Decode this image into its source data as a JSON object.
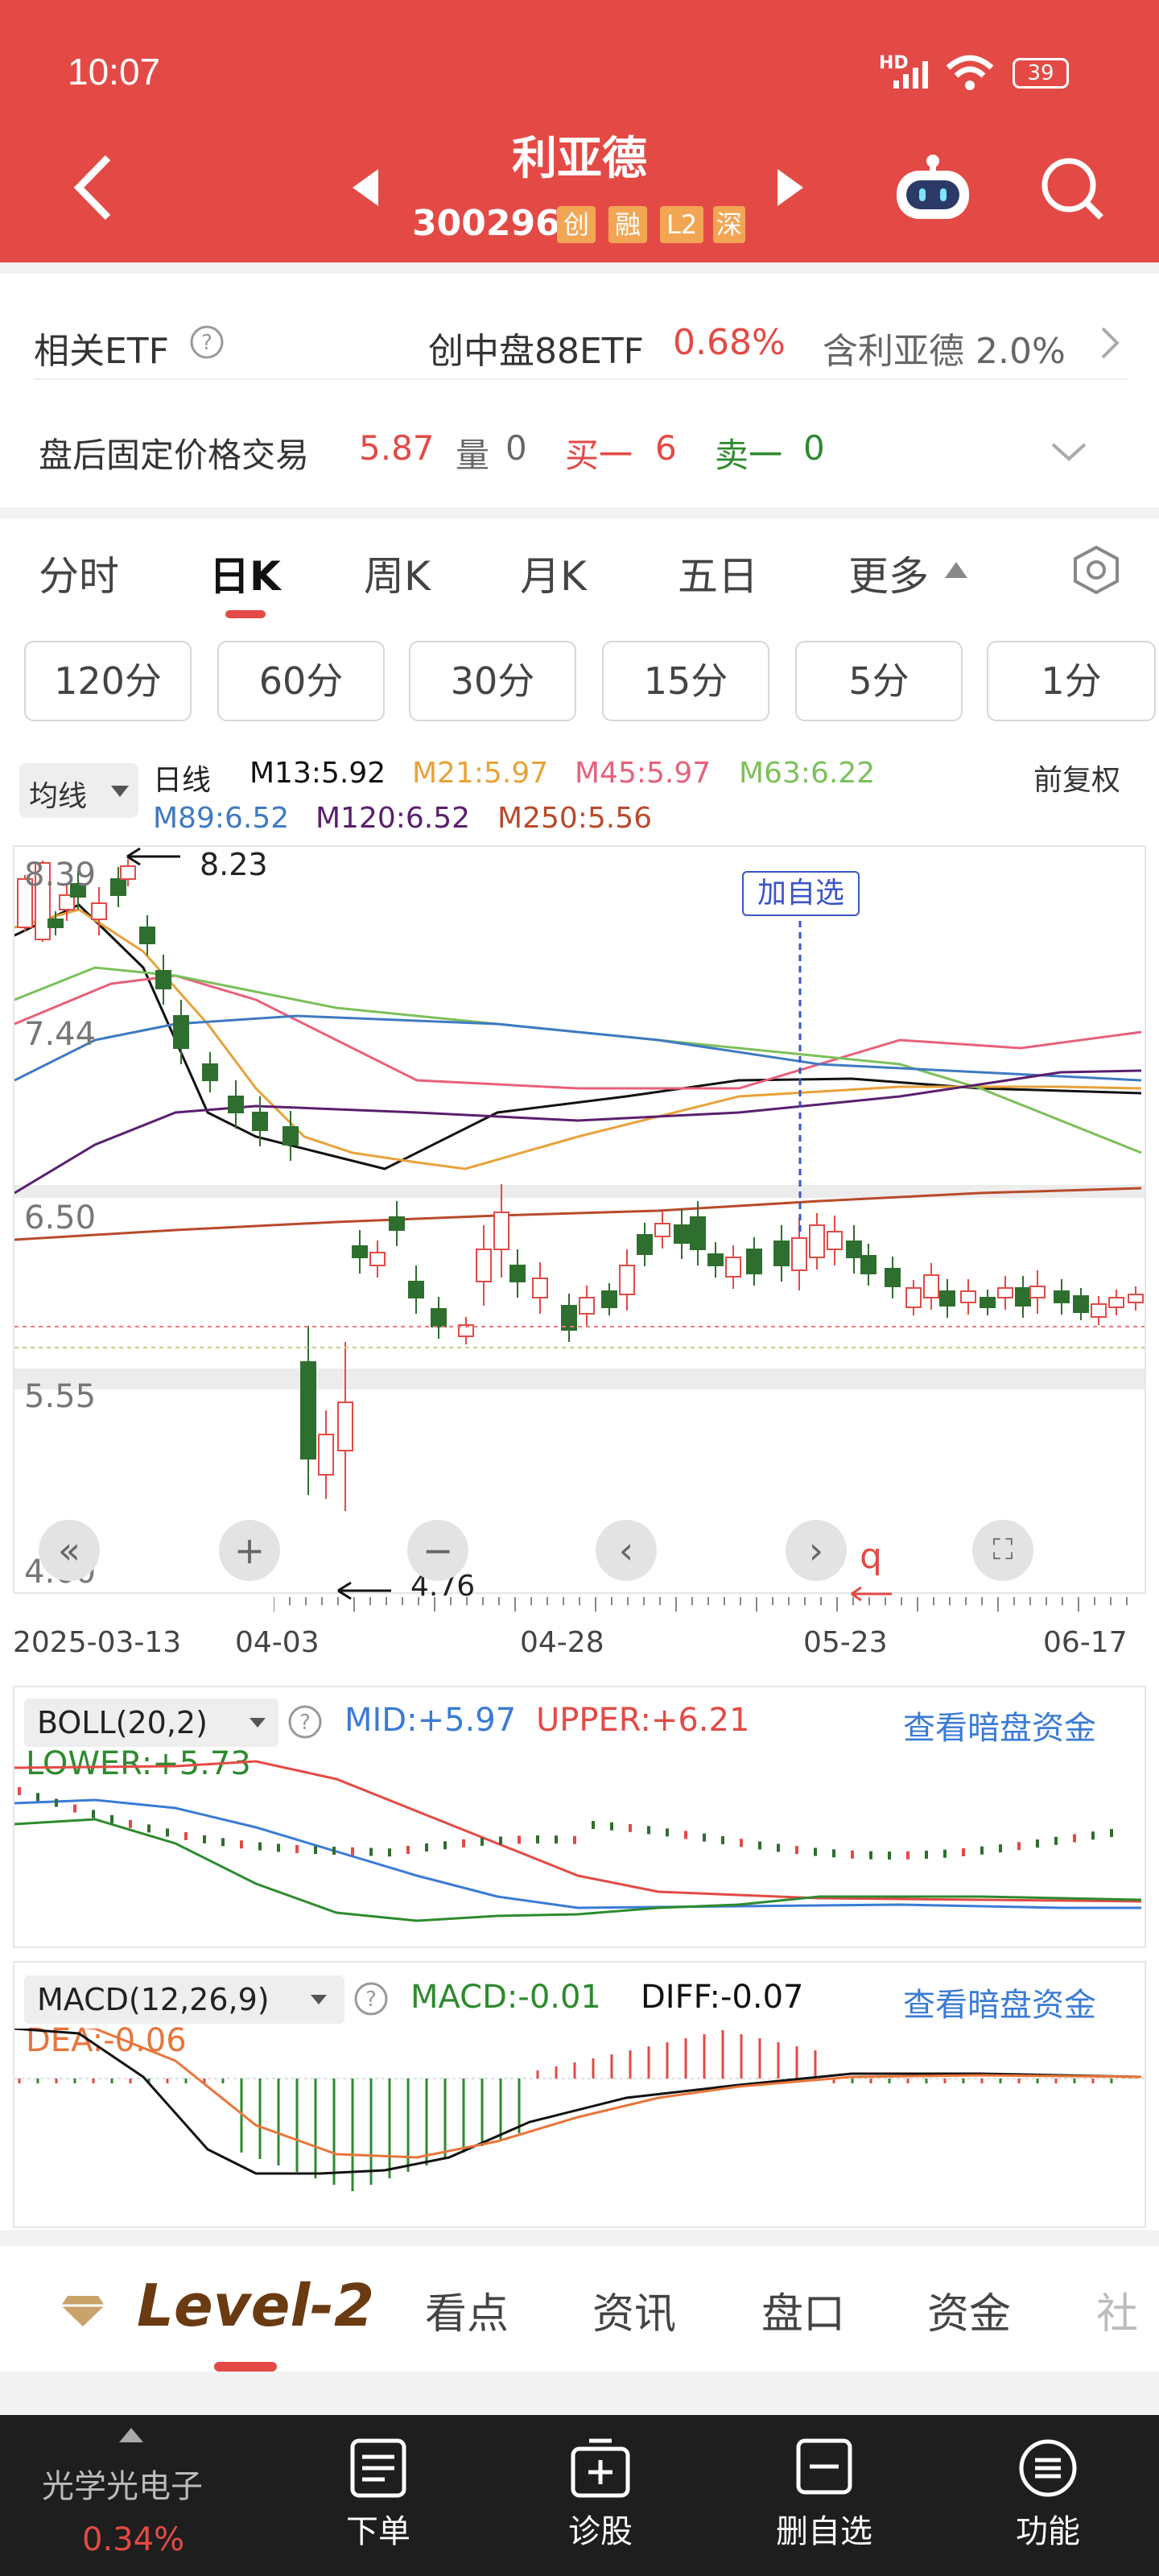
{
  "status_bar": {
    "time": "10:07",
    "network": "HD",
    "battery": "39"
  },
  "header": {
    "title": "利亚德",
    "code": "300296",
    "tags": [
      "创",
      "融",
      "L2",
      "深"
    ]
  },
  "etf_row": {
    "label": "相关ETF",
    "etf_name": "创中盘88ETF",
    "etf_change": "0.68%",
    "holding": "含利亚德 2.0%"
  },
  "after_hours": {
    "label": "盘后固定价格交易",
    "price": "5.87",
    "vol_label": "量",
    "vol": "0",
    "buy_label": "买一",
    "buy": "6",
    "sell_label": "卖一",
    "sell": "0"
  },
  "tabs": [
    "分时",
    "日K",
    "周K",
    "月K",
    "五日",
    "更多"
  ],
  "active_tab": "日K",
  "intervals": [
    "120分",
    "60分",
    "30分",
    "15分",
    "5分",
    "1分"
  ],
  "ma": {
    "selector": "均线",
    "period": "日线",
    "m13": "M13:5.92",
    "m21": "M21:5.97",
    "m45": "M45:5.97",
    "m63": "M63:6.22",
    "m89": "M89:6.52",
    "m120": "M120:6.52",
    "m250": "M250:5.56",
    "adjust": "前复权"
  },
  "kline": {
    "y_labels": [
      "8.39",
      "7.44",
      "6.50",
      "5.55",
      "4.60"
    ],
    "high_mark": "8.23",
    "low_mark": "4.76",
    "add_watch": "加自选",
    "dates": [
      "2025-03-13",
      "04-03",
      "04-28",
      "05-23",
      "06-17"
    ],
    "q_mark": "q"
  },
  "boll": {
    "name": "BOLL(20,2)",
    "mid": "MID:+5.97",
    "upper": "UPPER:+6.21",
    "lower": "LOWER:+5.73",
    "link": "查看暗盘资金"
  },
  "macd": {
    "name": "MACD(12,26,9)",
    "macd": "MACD:-0.01",
    "diff": "DIFF:-0.07",
    "dea": "DEA:-0.06",
    "link": "查看暗盘资金"
  },
  "nav": {
    "brand": "Level-2",
    "items": [
      "看点",
      "资讯",
      "盘口",
      "资金",
      "社"
    ]
  },
  "bottom": {
    "sector_name": "光学光电子",
    "sector_change": "0.34%",
    "actions": [
      "下单",
      "诊股",
      "删自选",
      "功能"
    ]
  },
  "colors": {
    "red": "#e34a45",
    "green": "#2e8a2e",
    "blue": "#3a7bd5"
  }
}
